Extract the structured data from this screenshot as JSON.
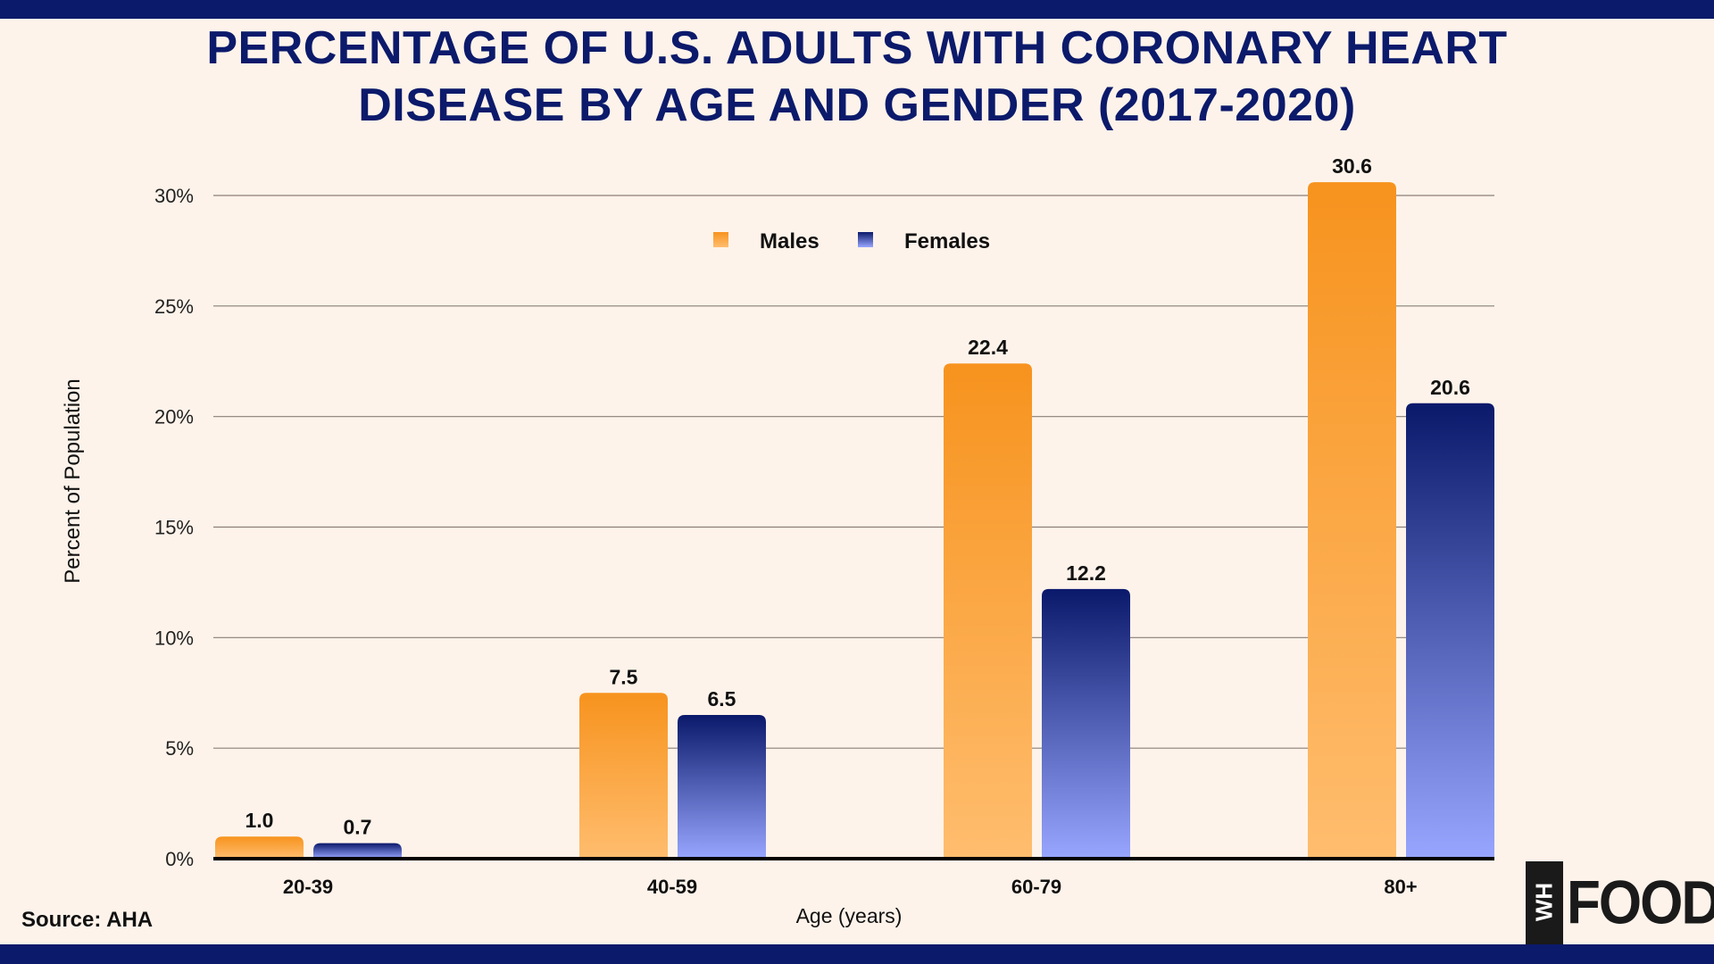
{
  "title_lines": [
    "PERCENTAGE OF U.S. ADULTS WITH CORONARY HEART",
    "DISEASE BY AGE AND GENDER (2017-2020)"
  ],
  "source": "Source: AHA",
  "logo": {
    "mark": "WH",
    "text": "FOODS"
  },
  "colors": {
    "background": "#fef3ea",
    "accent_bar": "#0c1a6b",
    "males_top": "#f7931e",
    "males_bottom": "#ffbd6e",
    "females_top": "#0b196b",
    "females_bottom": "#98a6ff"
  },
  "chart_data": {
    "type": "bar",
    "title": "PERCENTAGE OF U.S. ADULTS WITH CORONARY HEART DISEASE BY AGE AND GENDER (2017-2020)",
    "xlabel": "Age (years)",
    "ylabel": "Percent of Population",
    "categories": [
      "20-39",
      "40-59",
      "60-79",
      "80+"
    ],
    "series": [
      {
        "name": "Males",
        "values": [
          1.0,
          7.5,
          22.4,
          30.6
        ],
        "labels": [
          "1.0",
          "7.5",
          "22.4",
          "30.6"
        ]
      },
      {
        "name": "Females",
        "values": [
          0.7,
          6.5,
          12.2,
          20.6
        ],
        "labels": [
          "0.7",
          "6.5",
          "12.2",
          "20.6"
        ]
      }
    ],
    "ylim": [
      0,
      30
    ],
    "yticks": [
      0,
      5,
      10,
      15,
      20,
      25,
      30
    ],
    "ytick_labels": [
      "0%",
      "5%",
      "10%",
      "15%",
      "20%",
      "25%",
      "30%"
    ],
    "grid": true,
    "legend": "top-center"
  }
}
